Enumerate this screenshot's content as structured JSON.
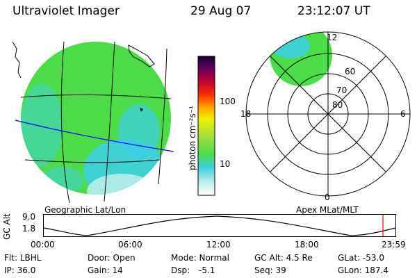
{
  "header": {
    "instrument": "Ultraviolet Imager",
    "date": "29 Aug 07",
    "time": "23:12:07 UT"
  },
  "colorbar": {
    "unit_label": "photon cm⁻²s⁻¹",
    "ticks": [
      "100",
      "10"
    ],
    "scale": "log"
  },
  "polar_plot": {
    "mlat_labels": [
      "60",
      "70",
      "80"
    ],
    "mlt_labels": [
      "12",
      "18",
      "6",
      "0"
    ]
  },
  "captions": {
    "left": "Geographic Lat/Lon",
    "right": "Apex  MLat/MLT"
  },
  "altitude_plot": {
    "ylabel": "GC Alt",
    "y_ticks": [
      "9.0",
      "1.8"
    ],
    "x_ticks": [
      "00:00",
      "06:00",
      "12:00",
      "18:00",
      "23:59"
    ],
    "current_time_marker": "23:12"
  },
  "status": {
    "filter": "Flt: LBHL",
    "door": "Door: Open",
    "mode": "Mode: Normal",
    "gc_alt": "GC Alt: 4.5 Re",
    "glat": "GLat: -53.0",
    "ip": "IP: 36.0",
    "gain": "Gain: 14",
    "dsp_label": "Dsp:",
    "dsp_value": "-5.1",
    "seq": "Seq: 39",
    "glon": "GLon: 187.4"
  },
  "colors": {
    "image_green": "#4cdc48",
    "image_cyan": "#3ccfe0",
    "image_pale": "#b8ece8",
    "track_line": "#0000ff",
    "marker": "#e00000"
  }
}
